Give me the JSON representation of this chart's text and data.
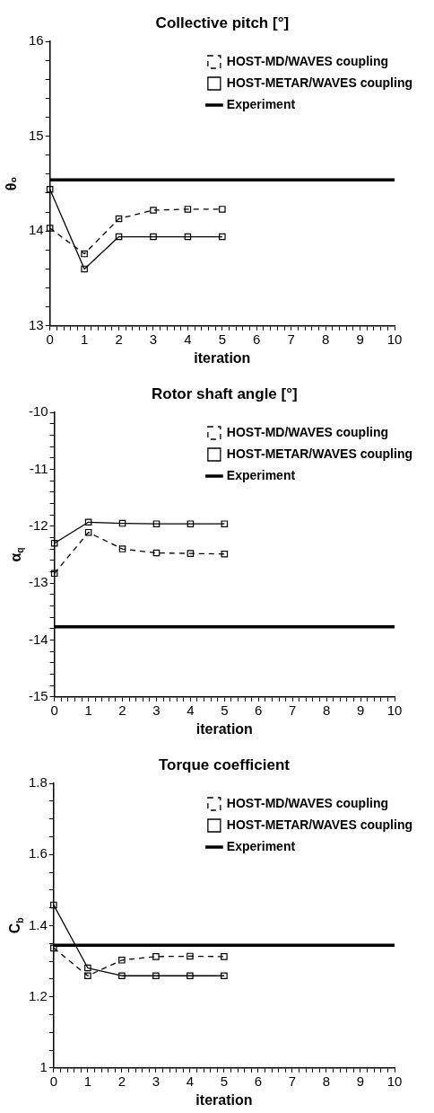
{
  "chart_data": [
    {
      "type": "line",
      "title": "Collective pitch [°]",
      "xlabel": "iteration",
      "ylabel": "θ₀",
      "x": [
        0,
        1,
        2,
        3,
        4,
        5
      ],
      "marker": "square",
      "legend": "top right",
      "grid": false,
      "xlim": [
        0,
        10
      ],
      "xticks": [
        0,
        {
          "value": 0.2,
          "label": null
        },
        {
          "value": 0.4,
          "label": null
        },
        {
          "value": 0.6,
          "label": null
        },
        {
          "value": 0.8,
          "label": null
        },
        1,
        {
          "value": 1.2,
          "label": null
        },
        {
          "value": 1.4,
          "label": null
        },
        {
          "value": 1.6,
          "label": null
        },
        {
          "value": 1.8,
          "label": null
        },
        2,
        {
          "value": 2.2,
          "label": null
        },
        {
          "value": 2.4,
          "label": null
        },
        {
          "value": 2.6,
          "label": null
        },
        {
          "value": 2.8,
          "label": null
        },
        3,
        {
          "value": 3.2,
          "label": null
        },
        {
          "value": 3.4,
          "label": null
        },
        {
          "value": 3.6,
          "label": null
        },
        {
          "value": 3.8,
          "label": null
        },
        4,
        {
          "value": 4.2,
          "label": null
        },
        {
          "value": 4.4,
          "label": null
        },
        {
          "value": 4.6,
          "label": null
        },
        {
          "value": 4.8,
          "label": null
        },
        5,
        {
          "value": 5.2,
          "label": null
        },
        {
          "value": 5.4,
          "label": null
        },
        {
          "value": 5.6,
          "label": null
        },
        {
          "value": 5.8,
          "label": null
        },
        6,
        {
          "value": 6.2,
          "label": null
        },
        {
          "value": 6.4,
          "label": null
        },
        {
          "value": 6.6,
          "label": null
        },
        {
          "value": 6.8,
          "label": null
        },
        7,
        {
          "value": 7.2,
          "label": null
        },
        {
          "value": 7.4,
          "label": null
        },
        {
          "value": 7.6,
          "label": null
        },
        {
          "value": 7.8,
          "label": null
        },
        8,
        {
          "value": 8.2,
          "label": null
        },
        {
          "value": 8.4,
          "label": null
        },
        {
          "value": 8.6,
          "label": null
        },
        {
          "value": 8.8,
          "label": null
        },
        9,
        {
          "value": 9.2,
          "label": null
        },
        {
          "value": 9.4,
          "label": null
        },
        {
          "value": 9.6,
          "label": null
        },
        {
          "value": 9.8,
          "label": null
        },
        10
      ],
      "ylim": [
        13,
        16
      ],
      "yticks": [
        13,
        {
          "value": 13.2,
          "label": null
        },
        {
          "value": 13.4,
          "label": null
        },
        {
          "value": 13.6,
          "label": null
        },
        {
          "value": 13.8,
          "label": null
        },
        14,
        {
          "value": 14.2,
          "label": null
        },
        {
          "value": 14.4,
          "label": null
        },
        {
          "value": 14.6,
          "label": null
        },
        {
          "value": 14.8,
          "label": null
        },
        15,
        {
          "value": 15.2,
          "label": null
        },
        {
          "value": 15.4,
          "label": null
        },
        {
          "value": 15.6,
          "label": null
        },
        {
          "value": 15.8,
          "label": null
        },
        16
      ],
      "series": [
        {
          "name": "HOST-MD/WAVES coupling",
          "color": "#000000",
          "line_style": "dashed",
          "values": [
            14.03,
            13.76,
            14.13,
            14.22,
            14.23,
            14.23
          ]
        },
        {
          "name": "HOST-METAR/WAVES coupling",
          "color": "#000000",
          "line_style": "solid",
          "values": [
            14.44,
            13.6,
            13.94,
            13.94,
            13.94,
            13.94
          ]
        }
      ],
      "ref_lines": [
        {
          "axis": "y",
          "value": 14.54,
          "label": "Experiment",
          "color": "#000000",
          "line_style": "solid"
        }
      ]
    },
    {
      "type": "line",
      "title": "Rotor shaft angle [°]",
      "xlabel": "iteration",
      "ylabel": "α$_{q}$",
      "x": [
        0,
        1,
        2,
        3,
        4,
        5
      ],
      "marker": "square",
      "legend": "top right",
      "grid": false,
      "xlim": [
        0,
        10
      ],
      "xticks": [
        0,
        {
          "value": 0.2,
          "label": null
        },
        {
          "value": 0.4,
          "label": null
        },
        {
          "value": 0.6,
          "label": null
        },
        {
          "value": 0.8,
          "label": null
        },
        1,
        {
          "value": 1.2,
          "label": null
        },
        {
          "value": 1.4,
          "label": null
        },
        {
          "value": 1.6,
          "label": null
        },
        {
          "value": 1.8,
          "label": null
        },
        2,
        {
          "value": 2.2,
          "label": null
        },
        {
          "value": 2.4,
          "label": null
        },
        {
          "value": 2.6,
          "label": null
        },
        {
          "value": 2.8,
          "label": null
        },
        3,
        {
          "value": 3.2,
          "label": null
        },
        {
          "value": 3.4,
          "label": null
        },
        {
          "value": 3.6,
          "label": null
        },
        {
          "value": 3.8,
          "label": null
        },
        4,
        {
          "value": 4.2,
          "label": null
        },
        {
          "value": 4.4,
          "label": null
        },
        {
          "value": 4.6,
          "label": null
        },
        {
          "value": 4.8,
          "label": null
        },
        5,
        {
          "value": 5.2,
          "label": null
        },
        {
          "value": 5.4,
          "label": null
        },
        {
          "value": 5.6,
          "label": null
        },
        {
          "value": 5.8,
          "label": null
        },
        6,
        {
          "value": 6.2,
          "label": null
        },
        {
          "value": 6.4,
          "label": null
        },
        {
          "value": 6.6,
          "label": null
        },
        {
          "value": 6.8,
          "label": null
        },
        7,
        {
          "value": 7.2,
          "label": null
        },
        {
          "value": 7.4,
          "label": null
        },
        {
          "value": 7.6,
          "label": null
        },
        {
          "value": 7.8,
          "label": null
        },
        8,
        {
          "value": 8.2,
          "label": null
        },
        {
          "value": 8.4,
          "label": null
        },
        {
          "value": 8.6,
          "label": null
        },
        {
          "value": 8.8,
          "label": null
        },
        9,
        {
          "value": 9.2,
          "label": null
        },
        {
          "value": 9.4,
          "label": null
        },
        {
          "value": 9.6,
          "label": null
        },
        {
          "value": 9.8,
          "label": null
        },
        10
      ],
      "ylim": [
        -15,
        -10
      ],
      "yticks": [
        -15,
        {
          "value": -14.8,
          "label": null
        },
        {
          "value": -14.6,
          "label": null
        },
        {
          "value": -14.4,
          "label": null
        },
        {
          "value": -14.2,
          "label": null
        },
        -14,
        {
          "value": -13.8,
          "label": null
        },
        {
          "value": -13.6,
          "label": null
        },
        {
          "value": -13.4,
          "label": null
        },
        {
          "value": -13.2,
          "label": null
        },
        -13,
        {
          "value": -12.8,
          "label": null
        },
        {
          "value": -12.6,
          "label": null
        },
        {
          "value": -12.4,
          "label": null
        },
        {
          "value": -12.2,
          "label": null
        },
        -12,
        {
          "value": -11.8,
          "label": null
        },
        {
          "value": -11.6,
          "label": null
        },
        {
          "value": -11.4,
          "label": null
        },
        {
          "value": -11.2,
          "label": null
        },
        -11,
        {
          "value": -10.8,
          "label": null
        },
        {
          "value": -10.6,
          "label": null
        },
        {
          "value": -10.4,
          "label": null
        },
        {
          "value": -10.2,
          "label": null
        },
        -10
      ],
      "series": [
        {
          "name": "HOST-MD/WAVES coupling",
          "color": "#000000",
          "line_style": "dashed",
          "values": [
            -12.83,
            -12.11,
            -12.4,
            -12.47,
            -12.48,
            -12.49
          ]
        },
        {
          "name": "HOST-METAR/WAVES coupling",
          "color": "#000000",
          "line_style": "solid",
          "values": [
            -12.3,
            -11.93,
            -11.95,
            -11.96,
            -11.96,
            -11.96
          ]
        }
      ],
      "ref_lines": [
        {
          "axis": "y",
          "value": -13.77,
          "label": "Experiment",
          "color": "#000000",
          "line_style": "solid"
        }
      ]
    },
    {
      "type": "line",
      "title": "Torque coefficient",
      "xlabel": "iteration",
      "ylabel": "C$_{b}$",
      "x": [
        0,
        1,
        2,
        3,
        4,
        5
      ],
      "marker": "square",
      "legend": "top right",
      "grid": false,
      "xlim": [
        0,
        10
      ],
      "xticks": [
        0,
        {
          "value": 0.2,
          "label": null
        },
        {
          "value": 0.4,
          "label": null
        },
        {
          "value": 0.6,
          "label": null
        },
        {
          "value": 0.8,
          "label": null
        },
        1,
        {
          "value": 1.2,
          "label": null
        },
        {
          "value": 1.4,
          "label": null
        },
        {
          "value": 1.6,
          "label": null
        },
        {
          "value": 1.8,
          "label": null
        },
        2,
        {
          "value": 2.2,
          "label": null
        },
        {
          "value": 2.4,
          "label": null
        },
        {
          "value": 2.6,
          "label": null
        },
        {
          "value": 2.8,
          "label": null
        },
        3,
        {
          "value": 3.2,
          "label": null
        },
        {
          "value": 3.4,
          "label": null
        },
        {
          "value": 3.6,
          "label": null
        },
        {
          "value": 3.8,
          "label": null
        },
        4,
        {
          "value": 4.2,
          "label": null
        },
        {
          "value": 4.4,
          "label": null
        },
        {
          "value": 4.6,
          "label": null
        },
        {
          "value": 4.8,
          "label": null
        },
        5,
        {
          "value": 5.2,
          "label": null
        },
        {
          "value": 5.4,
          "label": null
        },
        {
          "value": 5.6,
          "label": null
        },
        {
          "value": 5.8,
          "label": null
        },
        6,
        {
          "value": 6.2,
          "label": null
        },
        {
          "value": 6.4,
          "label": null
        },
        {
          "value": 6.6,
          "label": null
        },
        {
          "value": 6.8,
          "label": null
        },
        7,
        {
          "value": 7.2,
          "label": null
        },
        {
          "value": 7.4,
          "label": null
        },
        {
          "value": 7.6,
          "label": null
        },
        {
          "value": 7.8,
          "label": null
        },
        8,
        {
          "value": 8.2,
          "label": null
        },
        {
          "value": 8.4,
          "label": null
        },
        {
          "value": 8.6,
          "label": null
        },
        {
          "value": 8.8,
          "label": null
        },
        9,
        {
          "value": 9.2,
          "label": null
        },
        {
          "value": 9.4,
          "label": null
        },
        {
          "value": 9.6,
          "label": null
        },
        {
          "value": 9.8,
          "label": null
        },
        10
      ],
      "ylim": [
        1,
        1.8
      ],
      "yticks": [
        1,
        {
          "value": 1.05,
          "label": null
        },
        {
          "value": 1.1,
          "label": null
        },
        {
          "value": 1.15,
          "label": null
        },
        1.2,
        {
          "value": 1.25,
          "label": null
        },
        {
          "value": 1.3,
          "label": null
        },
        {
          "value": 1.35,
          "label": null
        },
        1.4,
        {
          "value": 1.45,
          "label": null
        },
        {
          "value": 1.5,
          "label": null
        },
        {
          "value": 1.55,
          "label": null
        },
        1.6,
        {
          "value": 1.65,
          "label": null
        },
        {
          "value": 1.7,
          "label": null
        },
        {
          "value": 1.75,
          "label": null
        },
        1.8
      ],
      "series": [
        {
          "name": "HOST-MD/WAVES coupling",
          "color": "#000000",
          "line_style": "dashed",
          "values": [
            1.337,
            1.259,
            1.303,
            1.313,
            1.314,
            1.313
          ]
        },
        {
          "name": "HOST-METAR/WAVES coupling",
          "color": "#000000",
          "line_style": "solid",
          "values": [
            1.458,
            1.281,
            1.259,
            1.259,
            1.259,
            1.259
          ]
        }
      ],
      "ref_lines": [
        {
          "axis": "y",
          "value": 1.345,
          "label": "Experiment",
          "color": "#000000",
          "line_style": "solid"
        }
      ]
    }
  ]
}
